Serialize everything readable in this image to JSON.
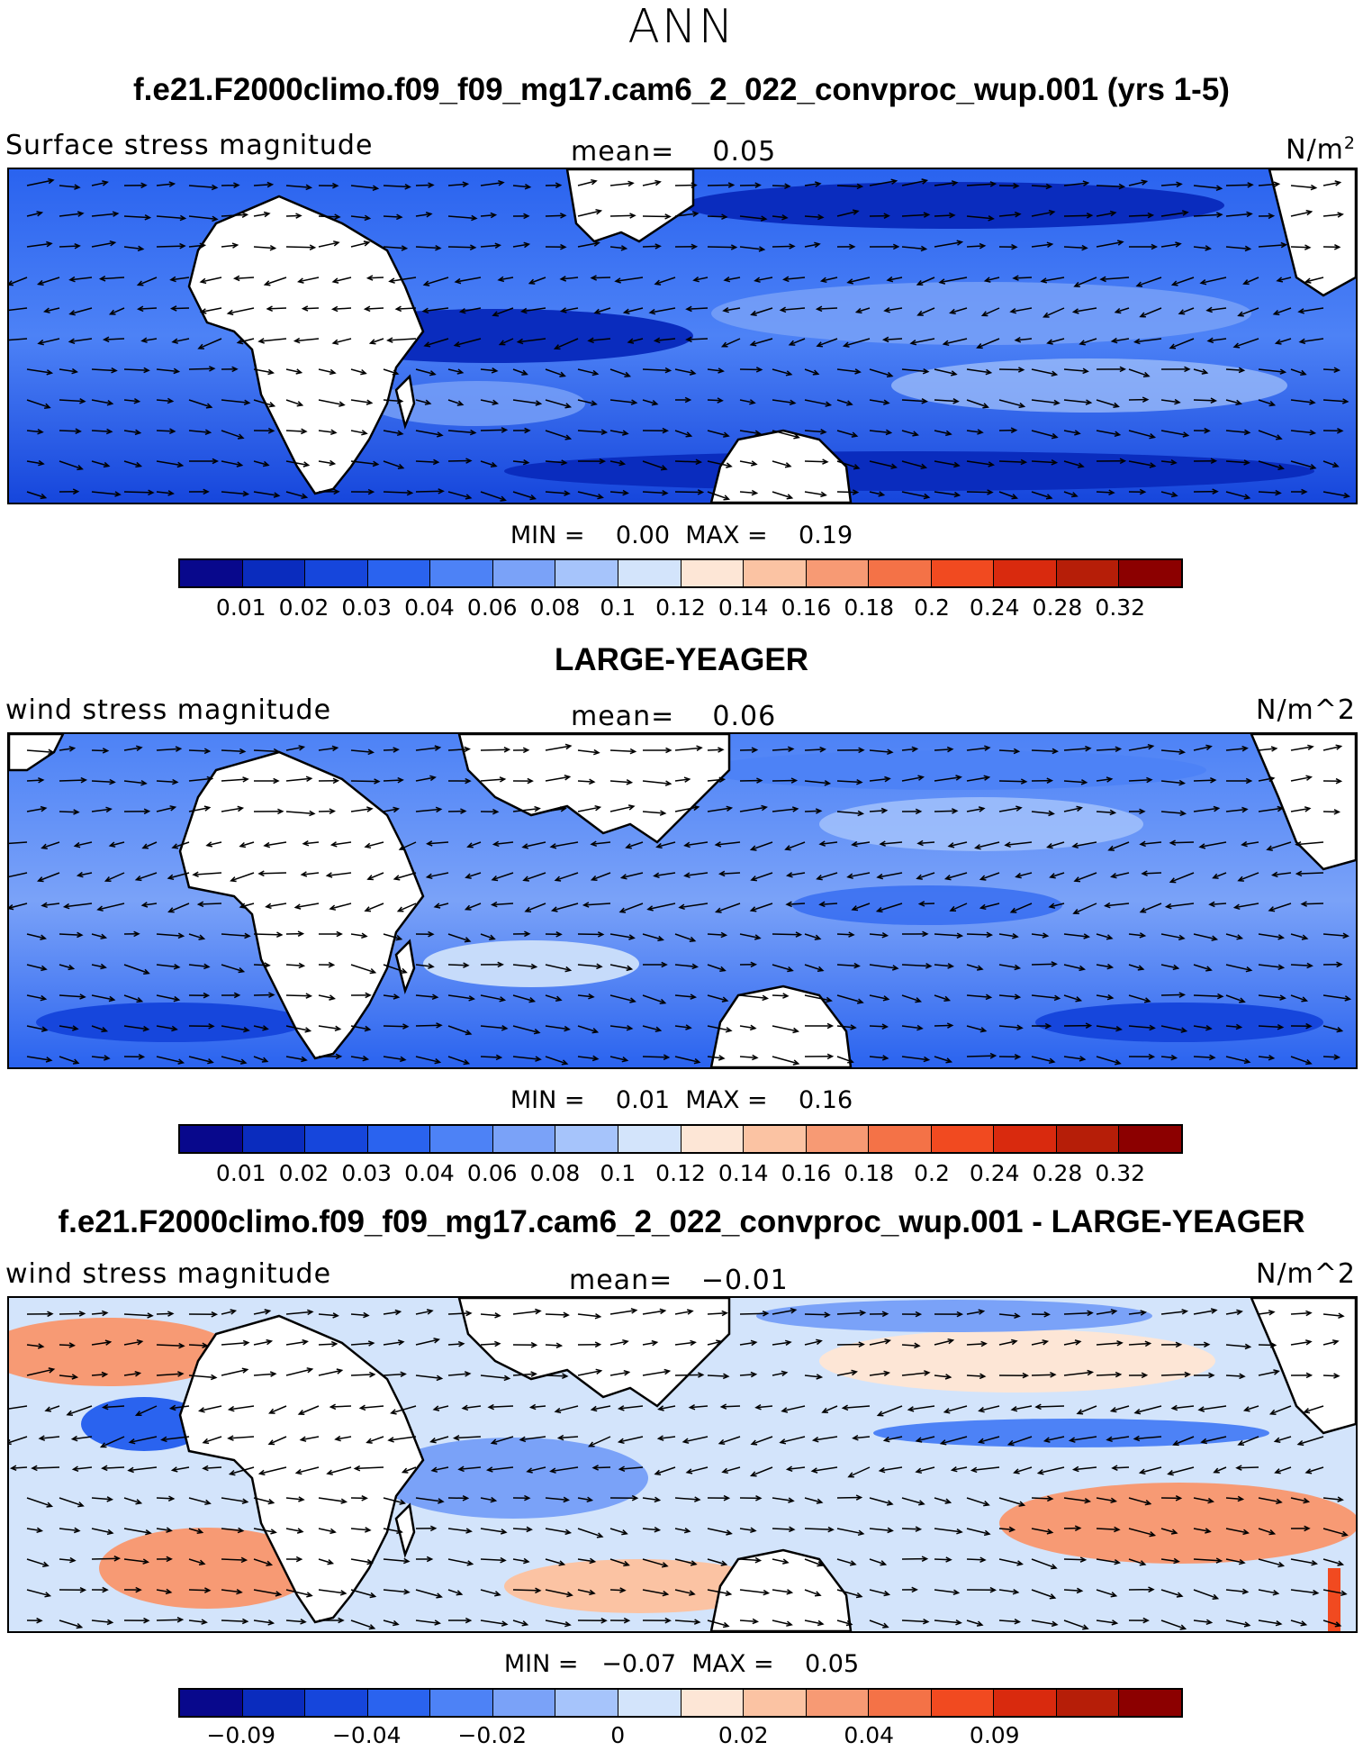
{
  "supertitle": "ANN",
  "colors": [
    "#08088c",
    "#0a2cbe",
    "#1646dc",
    "#2a63ef",
    "#4d82f6",
    "#7aa2f8",
    "#a6c4fb",
    "#d3e4fb",
    "#fde6d6",
    "#fbc3a3",
    "#f79a74",
    "#f47247",
    "#f14a20",
    "#d92a0e",
    "#b61e08",
    "#8c0000"
  ],
  "panels": [
    {
      "title": "f.e21.F2000climo.f09_f09_mg17.cam6_2_022_convproc_wup.001 (yrs 1-5)",
      "left_string": "Surface stress magnitude",
      "mean_label": "mean=",
      "mean_value": "0.05",
      "units_base": "N/m",
      "units_sup": "2",
      "min_label": "MIN =",
      "min_value": "0.00",
      "max_label": "MAX =",
      "max_value": "0.19",
      "colorbar_labels": [
        "0.01",
        "0.02",
        "0.03",
        "0.04",
        "0.06",
        "0.08",
        "0.1",
        "0.12",
        "0.14",
        "0.16",
        "0.18",
        "0.2",
        "0.24",
        "0.28",
        "0.32"
      ]
    },
    {
      "title": "LARGE-YEAGER",
      "left_string": "wind stress magnitude",
      "mean_label": "mean=",
      "mean_value": "0.06",
      "units": "N/m^2",
      "min_label": "MIN =",
      "min_value": "0.01",
      "max_label": "MAX =",
      "max_value": "0.16",
      "colorbar_labels": [
        "0.01",
        "0.02",
        "0.03",
        "0.04",
        "0.06",
        "0.08",
        "0.1",
        "0.12",
        "0.14",
        "0.16",
        "0.18",
        "0.2",
        "0.24",
        "0.28",
        "0.32"
      ]
    },
    {
      "title": "f.e21.F2000climo.f09_f09_mg17.cam6_2_022_convproc_wup.001 - LARGE-YEAGER",
      "left_string": "wind stress magnitude",
      "mean_label": "mean=",
      "mean_value": "−0.01",
      "units": "N/m^2",
      "min_label": "MIN =",
      "min_value": "−0.07",
      "max_label": "MAX =",
      "max_value": "0.05",
      "colorbar_labels": [
        "−0.09",
        "",
        "−0.04",
        "",
        "−0.02",
        "",
        "0",
        "",
        "0.02",
        "",
        "0.04",
        "",
        "0.09",
        "",
        ""
      ]
    }
  ]
}
